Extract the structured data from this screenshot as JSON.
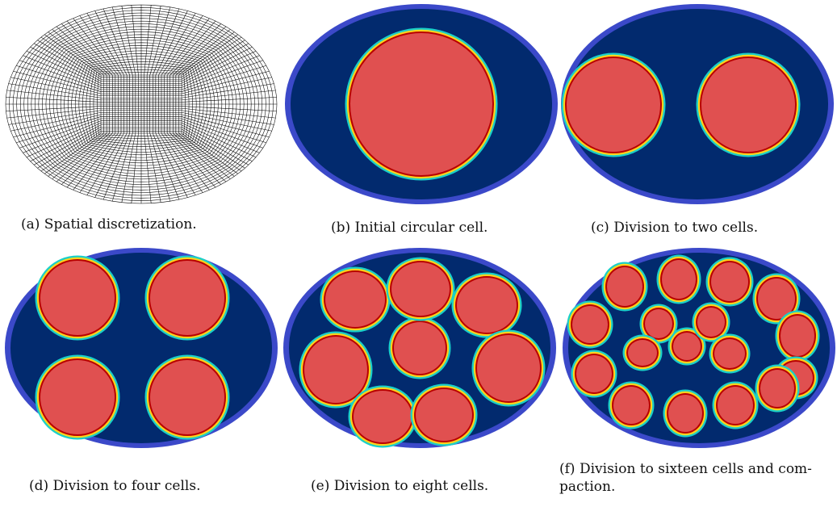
{
  "figure": {
    "panels": [
      {
        "id": "a",
        "caption": "(a) Spatial discretization.",
        "content": "computational mesh"
      },
      {
        "id": "b",
        "caption": "(b) Initial circular cell.",
        "cells": 1
      },
      {
        "id": "c",
        "caption": "(c) Division to two cells.",
        "cells": 2
      },
      {
        "id": "d",
        "caption": "(d) Division to four cells.",
        "cells": 4
      },
      {
        "id": "e",
        "caption": "(e) Division to eight cells.",
        "cells": 8
      },
      {
        "id": "f",
        "caption_line1": "(f) Division to sixteen cells and com-",
        "caption_line2": "paction.",
        "cells": 16
      }
    ],
    "colors": {
      "background_domain": "#022a6e",
      "domain_rim": "#3b49c9",
      "cell_interior": "#e05050",
      "interface_red": "#b80000",
      "interface_yellow": "#ffd21c",
      "interface_cyan": "#1ad0c8",
      "mesh_line": "#000000"
    }
  }
}
